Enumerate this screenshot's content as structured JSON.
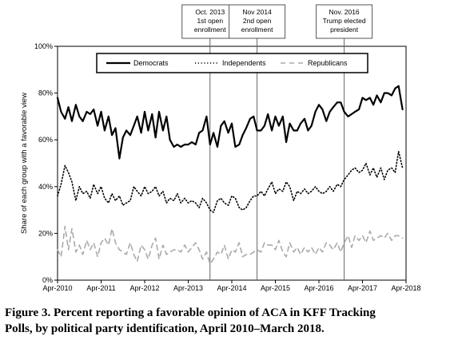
{
  "chart_data": {
    "type": "line",
    "ylabel": "Share of each group with a favorable view",
    "ylim": [
      0,
      100
    ],
    "y_ticks": [
      "0%",
      "20%",
      "40%",
      "60%",
      "80%",
      "100%"
    ],
    "x_ticks": [
      "Apr-2010",
      "Apr-2011",
      "Apr-2012",
      "Apr-2013",
      "Apr-2014",
      "Apr-2015",
      "Apr-2016",
      "Apr-2017",
      "Apr-2018"
    ],
    "xlim": [
      2010.25,
      2018.25
    ],
    "grid": "vertical dividers at events",
    "legend_position": "top",
    "events": [
      {
        "x": 2013.75,
        "label": [
          "Oct. 2013",
          "1st open",
          "enrollment"
        ]
      },
      {
        "x": 2014.83,
        "label": [
          "Nov 2014",
          "2nd open",
          "enrollment"
        ]
      },
      {
        "x": 2016.83,
        "label": [
          "Nov. 2016",
          "Trump elected",
          "president"
        ]
      }
    ],
    "series": [
      {
        "name": "Democrats",
        "style": "solid",
        "color": "#000000",
        "x": [
          2010.25,
          2010.33,
          2010.42,
          2010.5,
          2010.58,
          2010.67,
          2010.75,
          2010.83,
          2010.92,
          2011.0,
          2011.08,
          2011.17,
          2011.25,
          2011.33,
          2011.42,
          2011.5,
          2011.58,
          2011.67,
          2011.75,
          2011.83,
          2011.92,
          2012.0,
          2012.08,
          2012.17,
          2012.25,
          2012.33,
          2012.42,
          2012.5,
          2012.58,
          2012.67,
          2012.75,
          2012.83,
          2012.92,
          2013.0,
          2013.08,
          2013.17,
          2013.25,
          2013.33,
          2013.42,
          2013.5,
          2013.58,
          2013.67,
          2013.75,
          2013.83,
          2013.92,
          2014.0,
          2014.08,
          2014.17,
          2014.25,
          2014.33,
          2014.42,
          2014.5,
          2014.58,
          2014.67,
          2014.75,
          2014.83,
          2014.92,
          2015.0,
          2015.08,
          2015.17,
          2015.25,
          2015.33,
          2015.42,
          2015.5,
          2015.58,
          2015.67,
          2015.75,
          2015.83,
          2015.92,
          2016.0,
          2016.08,
          2016.17,
          2016.25,
          2016.33,
          2016.42,
          2016.5,
          2016.58,
          2016.67,
          2016.75,
          2016.83,
          2016.92,
          2017.0,
          2017.08,
          2017.17,
          2017.25,
          2017.33,
          2017.42,
          2017.5,
          2017.58,
          2017.67,
          2017.75,
          2017.83,
          2017.92,
          2018.0,
          2018.08,
          2018.17
        ],
        "values": [
          78,
          72,
          69,
          74,
          68,
          75,
          70,
          68,
          72,
          71,
          73,
          66,
          72,
          64,
          70,
          62,
          65,
          52,
          61,
          64,
          62,
          66,
          70,
          63,
          72,
          64,
          71,
          61,
          72,
          64,
          70,
          60,
          57,
          58,
          57,
          58,
          58,
          59,
          58,
          63,
          64,
          70,
          58,
          63,
          57,
          66,
          68,
          63,
          67,
          57,
          58,
          62,
          65,
          69,
          70,
          64,
          64,
          66,
          71,
          64,
          70,
          66,
          70,
          59,
          67,
          64,
          64,
          67,
          69,
          64,
          66,
          72,
          75,
          73,
          68,
          72,
          74,
          76,
          76,
          72,
          70,
          71,
          72,
          73,
          78,
          77,
          78,
          75,
          79,
          76,
          80,
          80,
          79,
          82,
          83,
          73
        ]
      },
      {
        "name": "Independents",
        "style": "dotted",
        "color": "#000000",
        "x": [
          2010.25,
          2010.33,
          2010.42,
          2010.5,
          2010.58,
          2010.67,
          2010.75,
          2010.83,
          2010.92,
          2011.0,
          2011.08,
          2011.17,
          2011.25,
          2011.33,
          2011.42,
          2011.5,
          2011.58,
          2011.67,
          2011.75,
          2011.83,
          2011.92,
          2012.0,
          2012.08,
          2012.17,
          2012.25,
          2012.33,
          2012.42,
          2012.5,
          2012.58,
          2012.67,
          2012.75,
          2012.83,
          2012.92,
          2013.0,
          2013.08,
          2013.17,
          2013.25,
          2013.33,
          2013.42,
          2013.5,
          2013.58,
          2013.67,
          2013.75,
          2013.83,
          2013.92,
          2014.0,
          2014.08,
          2014.17,
          2014.25,
          2014.33,
          2014.42,
          2014.5,
          2014.58,
          2014.67,
          2014.75,
          2014.83,
          2014.92,
          2015.0,
          2015.08,
          2015.17,
          2015.25,
          2015.33,
          2015.42,
          2015.5,
          2015.58,
          2015.67,
          2015.75,
          2015.83,
          2015.92,
          2016.0,
          2016.08,
          2016.17,
          2016.25,
          2016.33,
          2016.42,
          2016.5,
          2016.58,
          2016.67,
          2016.75,
          2016.83,
          2016.92,
          2017.0,
          2017.08,
          2017.17,
          2017.25,
          2017.33,
          2017.42,
          2017.5,
          2017.58,
          2017.67,
          2017.75,
          2017.83,
          2017.92,
          2018.0,
          2018.08,
          2018.17
        ],
        "values": [
          36,
          41,
          49,
          46,
          42,
          34,
          40,
          37,
          38,
          35,
          41,
          37,
          40,
          35,
          33,
          37,
          34,
          36,
          32,
          33,
          34,
          40,
          38,
          36,
          40,
          37,
          38,
          40,
          36,
          38,
          33,
          35,
          34,
          37,
          33,
          35,
          33,
          34,
          33,
          31,
          35,
          33,
          30,
          29,
          34,
          35,
          33,
          32,
          36,
          35,
          31,
          30,
          31,
          34,
          36,
          36,
          38,
          36,
          39,
          42,
          37,
          39,
          38,
          42,
          40,
          34,
          38,
          37,
          39,
          37,
          38,
          40,
          38,
          37,
          38,
          40,
          38,
          41,
          40,
          43,
          45,
          47,
          48,
          46,
          47,
          50,
          45,
          48,
          44,
          48,
          43,
          47,
          48,
          46,
          55,
          48
        ]
      },
      {
        "name": "Republicans",
        "style": "dashed",
        "color": "#aaaaaa",
        "x": [
          2010.25,
          2010.33,
          2010.42,
          2010.5,
          2010.58,
          2010.67,
          2010.75,
          2010.83,
          2010.92,
          2011.0,
          2011.08,
          2011.17,
          2011.25,
          2011.33,
          2011.42,
          2011.5,
          2011.58,
          2011.67,
          2011.75,
          2011.83,
          2011.92,
          2012.0,
          2012.08,
          2012.17,
          2012.25,
          2012.33,
          2012.42,
          2012.5,
          2012.58,
          2012.67,
          2012.75,
          2012.83,
          2012.92,
          2013.0,
          2013.08,
          2013.17,
          2013.25,
          2013.33,
          2013.42,
          2013.5,
          2013.58,
          2013.67,
          2013.75,
          2013.83,
          2013.92,
          2014.0,
          2014.08,
          2014.17,
          2014.25,
          2014.33,
          2014.42,
          2014.5,
          2014.58,
          2014.67,
          2014.75,
          2014.83,
          2014.92,
          2015.0,
          2015.08,
          2015.17,
          2015.25,
          2015.33,
          2015.42,
          2015.5,
          2015.58,
          2015.67,
          2015.75,
          2015.83,
          2015.92,
          2016.0,
          2016.08,
          2016.17,
          2016.25,
          2016.33,
          2016.42,
          2016.5,
          2016.58,
          2016.67,
          2016.75,
          2016.83,
          2016.92,
          2017.0,
          2017.08,
          2017.17,
          2017.25,
          2017.33,
          2017.42,
          2017.5,
          2017.58,
          2017.67,
          2017.75,
          2017.83,
          2017.92,
          2018.0,
          2018.08,
          2018.17
        ],
        "values": [
          13,
          10,
          23,
          13,
          22,
          12,
          15,
          11,
          17,
          13,
          16,
          10,
          16,
          18,
          15,
          22,
          16,
          13,
          12,
          11,
          16,
          11,
          8,
          15,
          13,
          9,
          15,
          18,
          9,
          15,
          11,
          12,
          13,
          13,
          12,
          15,
          12,
          14,
          16,
          13,
          9,
          12,
          7,
          9,
          12,
          11,
          15,
          9,
          13,
          12,
          16,
          10,
          11,
          11,
          12,
          13,
          12,
          16,
          15,
          15,
          13,
          17,
          12,
          10,
          16,
          12,
          14,
          11,
          14,
          12,
          14,
          11,
          14,
          12,
          16,
          15,
          13,
          16,
          12,
          16,
          19,
          14,
          19,
          17,
          19,
          16,
          21,
          17,
          18,
          19,
          18,
          20,
          17,
          19,
          19,
          18
        ]
      }
    ]
  },
  "caption": {
    "line1": "Figure 3.  Percent reporting a favorable opinion of ACA in KFF Tracking",
    "line2": "Polls, by political party identification, April 2010–March 2018."
  }
}
